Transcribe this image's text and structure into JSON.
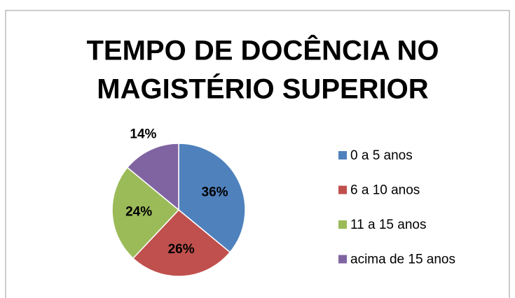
{
  "chart_data": {
    "type": "pie",
    "title": [
      "TEMPO DE DOCÊNCIA NO",
      "MAGISTÉRIO SUPERIOR"
    ],
    "categories": [
      "0 a 5 anos",
      "6 a 10 anos",
      "11 a 15 anos",
      "acima de 15 anos"
    ],
    "values": [
      36,
      26,
      24,
      14
    ],
    "value_labels": [
      "36%",
      "26%",
      "24%",
      "14%"
    ],
    "colors": [
      "#4f81bd",
      "#c0504d",
      "#9bbb59",
      "#8064a2"
    ],
    "legend": "right"
  }
}
